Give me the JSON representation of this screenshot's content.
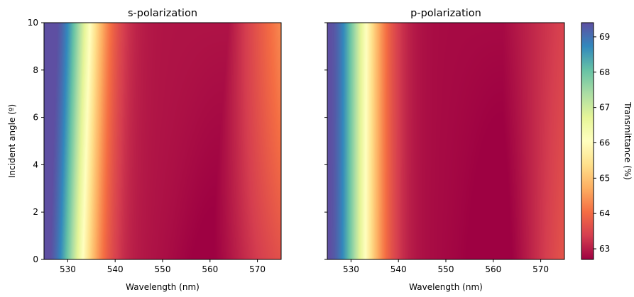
{
  "chart_data": {
    "type": "heatmap",
    "colormap": "Spectral",
    "shared_y_axis": true,
    "panels": [
      {
        "title": "s-polarization",
        "xlabel": "Wavelength (nm)",
        "ylabel": "Incident angle (º)",
        "xlim": [
          525,
          575
        ],
        "ylim": [
          0,
          10
        ],
        "xticks": [
          530,
          540,
          550,
          560,
          570
        ],
        "yticks": [
          0,
          2,
          4,
          6,
          8,
          10
        ],
        "show_ytick_labels": true,
        "model": {
          "baseline": 62.9,
          "peak_wavelength_at_0deg": 525,
          "peak_shift_per_deg": 0.15,
          "peak_amplitude": 6.6,
          "peak_width": 9.5,
          "min_wavelength_at_0deg": 560,
          "min_shift_per_deg": 0.4,
          "recovery_rate_per_nm": 0.05,
          "recovery_gain_per_deg": 0.008
        }
      },
      {
        "title": "p-polarization",
        "xlabel": "Wavelength (nm)",
        "ylabel": "",
        "xlim": [
          525,
          575
        ],
        "ylim": [
          0,
          10
        ],
        "xticks": [
          530,
          540,
          550,
          560,
          570
        ],
        "yticks": [
          0,
          2,
          4,
          6,
          8,
          10
        ],
        "show_ytick_labels": false,
        "model": {
          "baseline": 62.8,
          "peak_wavelength_at_0deg": 525,
          "peak_shift_per_deg": 0.02,
          "peak_amplitude": 6.6,
          "peak_width": 9.5,
          "min_wavelength_at_0deg": 562,
          "min_shift_per_deg": 0.0,
          "recovery_rate_per_nm": 0.07,
          "recovery_gain_per_deg": -0.002
        }
      }
    ],
    "colorbar": {
      "label": "Transmittance (%)",
      "min": 62.7,
      "max": 69.4,
      "ticks": [
        63,
        64,
        65,
        66,
        67,
        68,
        69
      ]
    }
  }
}
